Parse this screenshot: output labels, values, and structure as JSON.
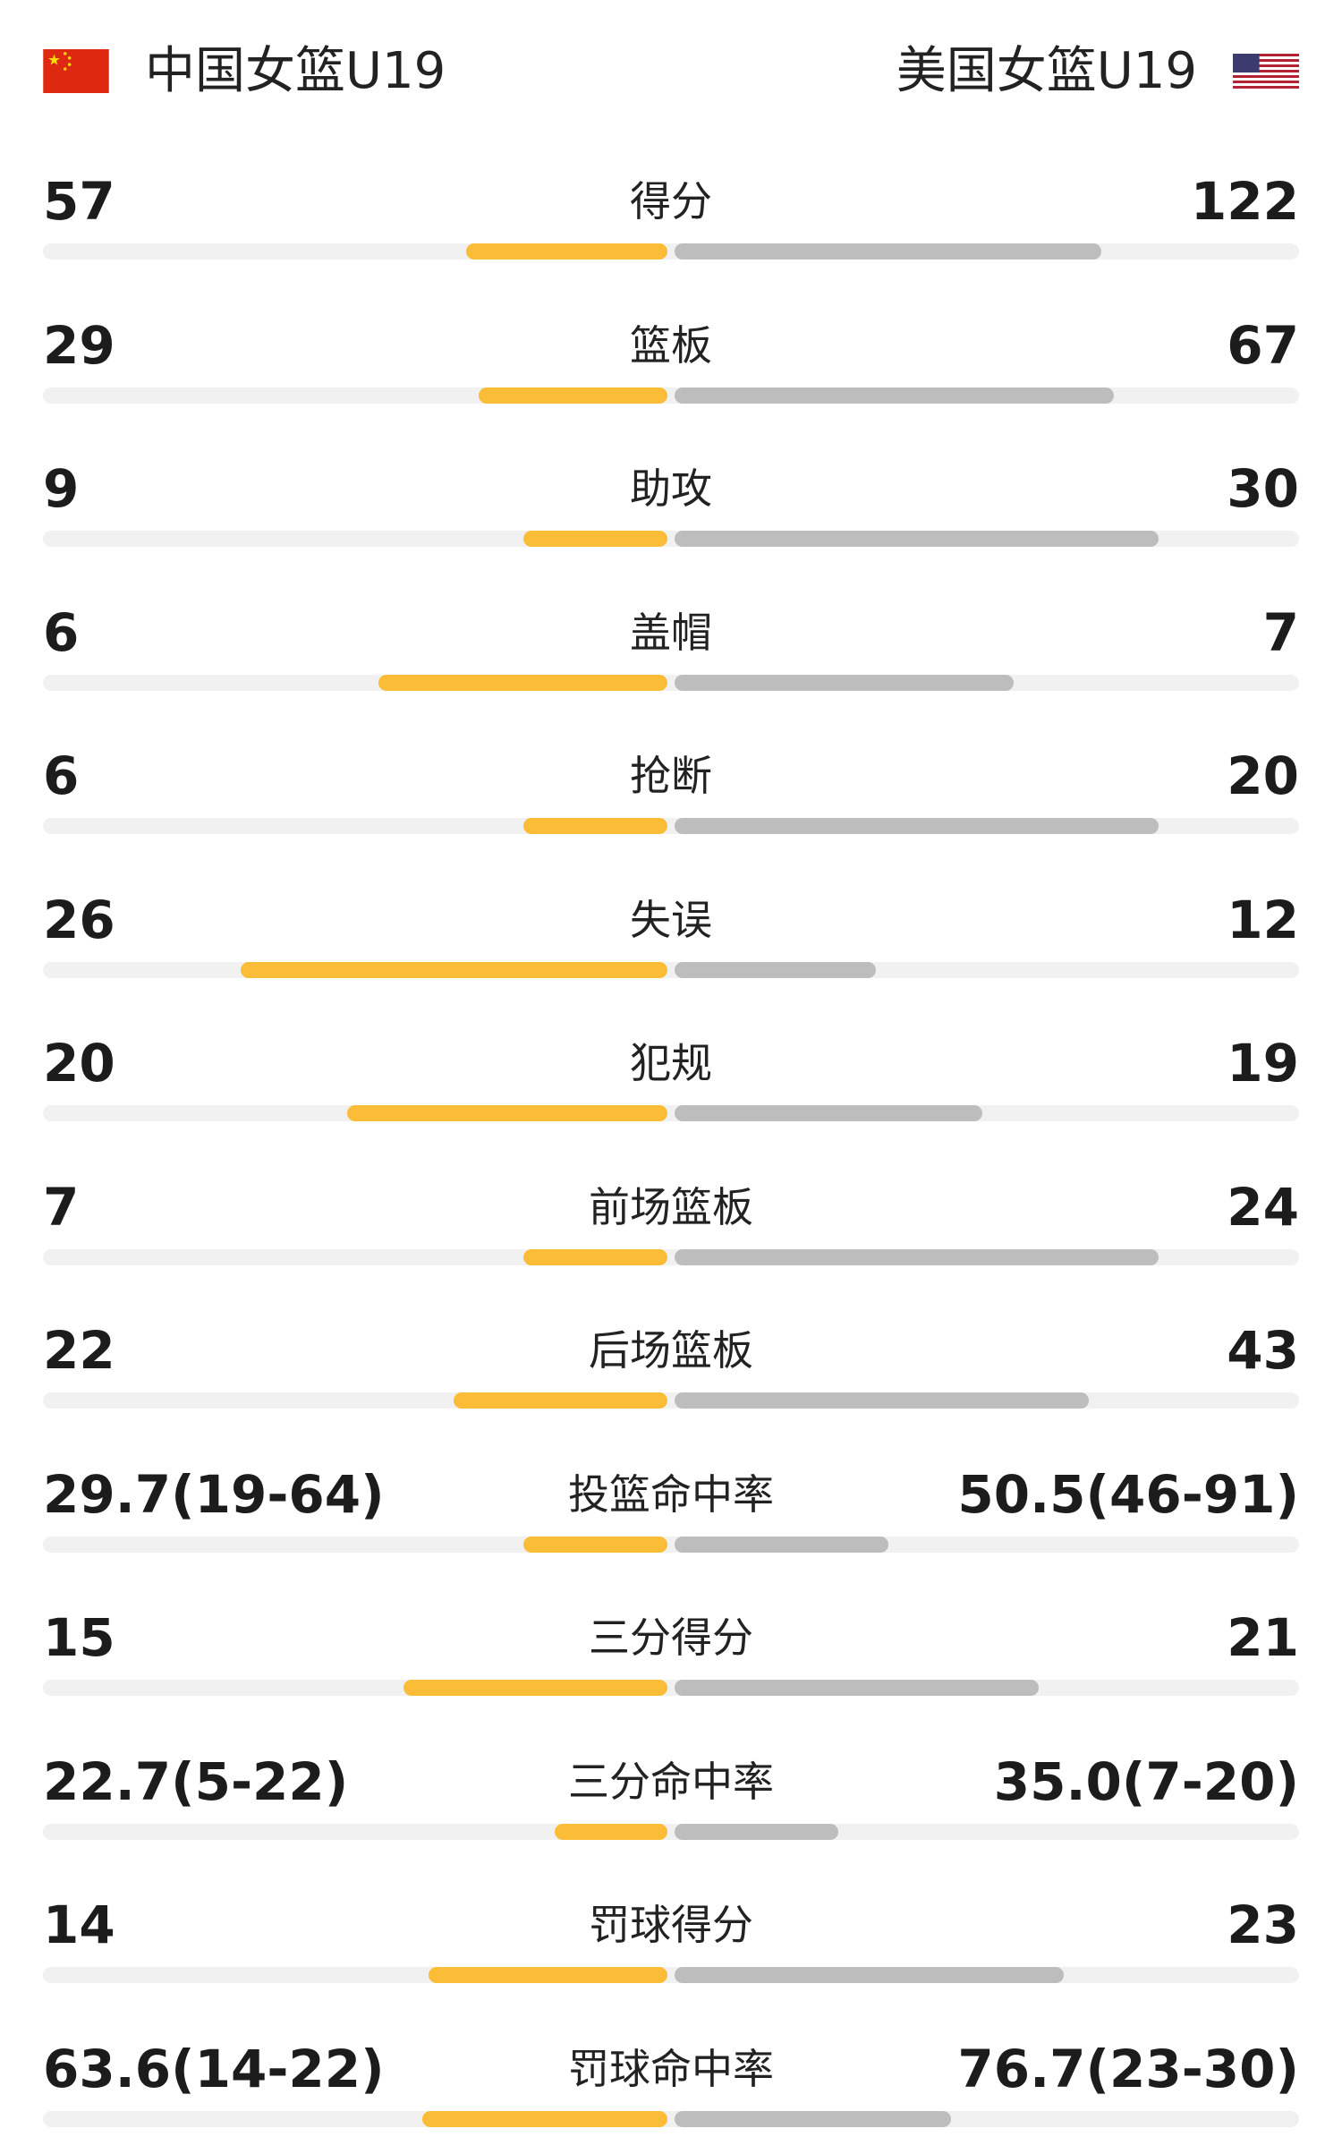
{
  "teams": {
    "left": {
      "name": "中国女篮U19",
      "flag_icon": "china-flag-icon"
    },
    "right": {
      "name": "美国女篮U19",
      "flag_icon": "usa-flag-icon"
    }
  },
  "colors": {
    "left_bar": "#fbbd37",
    "right_bar": "#bdbdbd",
    "track": "#f1f1f1"
  },
  "stats": [
    {
      "label": "得分",
      "left": "57",
      "right": "122",
      "left_share": 0.32,
      "right_share": 0.68
    },
    {
      "label": "篮板",
      "left": "29",
      "right": "67",
      "left_share": 0.3,
      "right_share": 0.7
    },
    {
      "label": "助攻",
      "left": "9",
      "right": "30",
      "left_share": 0.23,
      "right_share": 0.77
    },
    {
      "label": "盖帽",
      "left": "6",
      "right": "7",
      "left_share": 0.46,
      "right_share": 0.54
    },
    {
      "label": "抢断",
      "left": "6",
      "right": "20",
      "left_share": 0.23,
      "right_share": 0.77
    },
    {
      "label": "失误",
      "left": "26",
      "right": "12",
      "left_share": 0.68,
      "right_share": 0.32
    },
    {
      "label": "犯规",
      "left": "20",
      "right": "19",
      "left_share": 0.51,
      "right_share": 0.49
    },
    {
      "label": "前场篮板",
      "left": "7",
      "right": "24",
      "left_share": 0.23,
      "right_share": 0.77
    },
    {
      "label": "后场篮板",
      "left": "22",
      "right": "43",
      "left_share": 0.34,
      "right_share": 0.66
    },
    {
      "label": "投篮命中率",
      "left": "29.7(19-64)",
      "right": "50.5(46-91)",
      "left_share": 0.23,
      "right_share": 0.34
    },
    {
      "label": "三分得分",
      "left": "15",
      "right": "21",
      "left_share": 0.42,
      "right_share": 0.58
    },
    {
      "label": "三分命中率",
      "left": "22.7(5-22)",
      "right": "35.0(7-20)",
      "left_share": 0.18,
      "right_share": 0.26
    },
    {
      "label": "罚球得分",
      "left": "14",
      "right": "23",
      "left_share": 0.38,
      "right_share": 0.62
    },
    {
      "label": "罚球命中率",
      "left": "63.6(14-22)",
      "right": "76.7(23-30)",
      "left_share": 0.39,
      "right_share": 0.44
    }
  ]
}
